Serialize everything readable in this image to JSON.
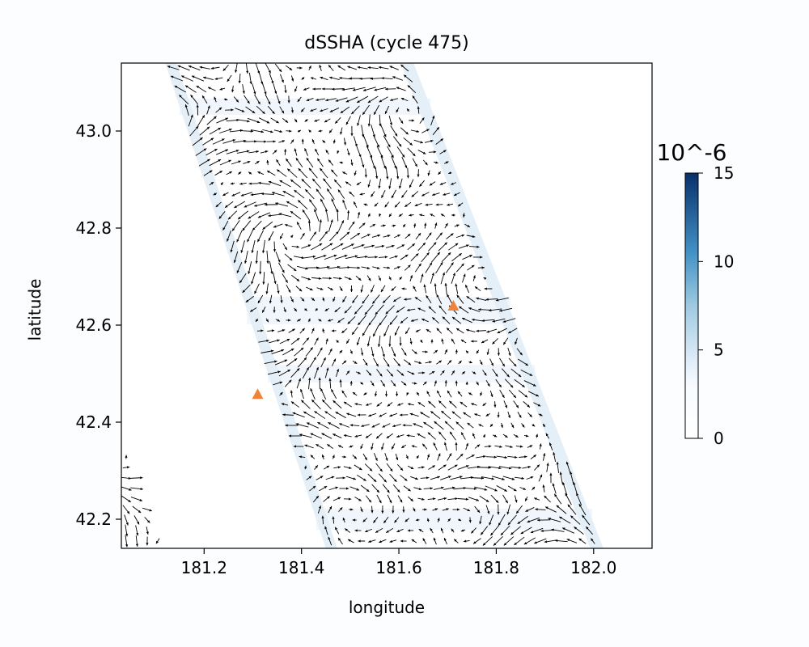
{
  "chart_data": {
    "type": "quiver",
    "title": "dSSHA (cycle 475)",
    "xlabel": "longitude",
    "ylabel": "latitude",
    "xlim": [
      181.03,
      182.12
    ],
    "ylim": [
      42.14,
      43.14
    ],
    "xticks": [
      181.2,
      181.4,
      181.6,
      181.8,
      182.0
    ],
    "xtick_labels": [
      "181.2",
      "181.4",
      "181.6",
      "181.8",
      "182.0"
    ],
    "yticks": [
      42.2,
      42.4,
      42.6,
      42.8,
      43.0
    ],
    "ytick_labels": [
      "42.2",
      "42.4",
      "42.6",
      "42.8",
      "43.0"
    ],
    "grid": false,
    "swath": {
      "left_edge": [
        [
          181.12,
          43.14
        ],
        [
          181.45,
          42.14
        ]
      ],
      "right_edge": [
        [
          181.63,
          43.14
        ],
        [
          182.02,
          42.14
        ]
      ]
    },
    "small_swath": {
      "left_edge": [
        [
          181.0,
          42.46
        ],
        [
          181.02,
          42.14
        ]
      ],
      "right_edge": [
        [
          181.0,
          42.46
        ],
        [
          181.12,
          42.14
        ]
      ]
    },
    "points": [
      {
        "x": 181.31,
        "y": 42.458,
        "color": "#f0833a"
      },
      {
        "x": 181.712,
        "y": 42.64,
        "color": "#f0833a"
      }
    ],
    "colorbar": {
      "title": "10^-6",
      "min": 0,
      "max": 15,
      "ticks": [
        0,
        5,
        10,
        15
      ],
      "colors": [
        "#ffffff",
        "#deebf7",
        "#9ecae1",
        "#4292c6",
        "#08306b"
      ]
    }
  }
}
